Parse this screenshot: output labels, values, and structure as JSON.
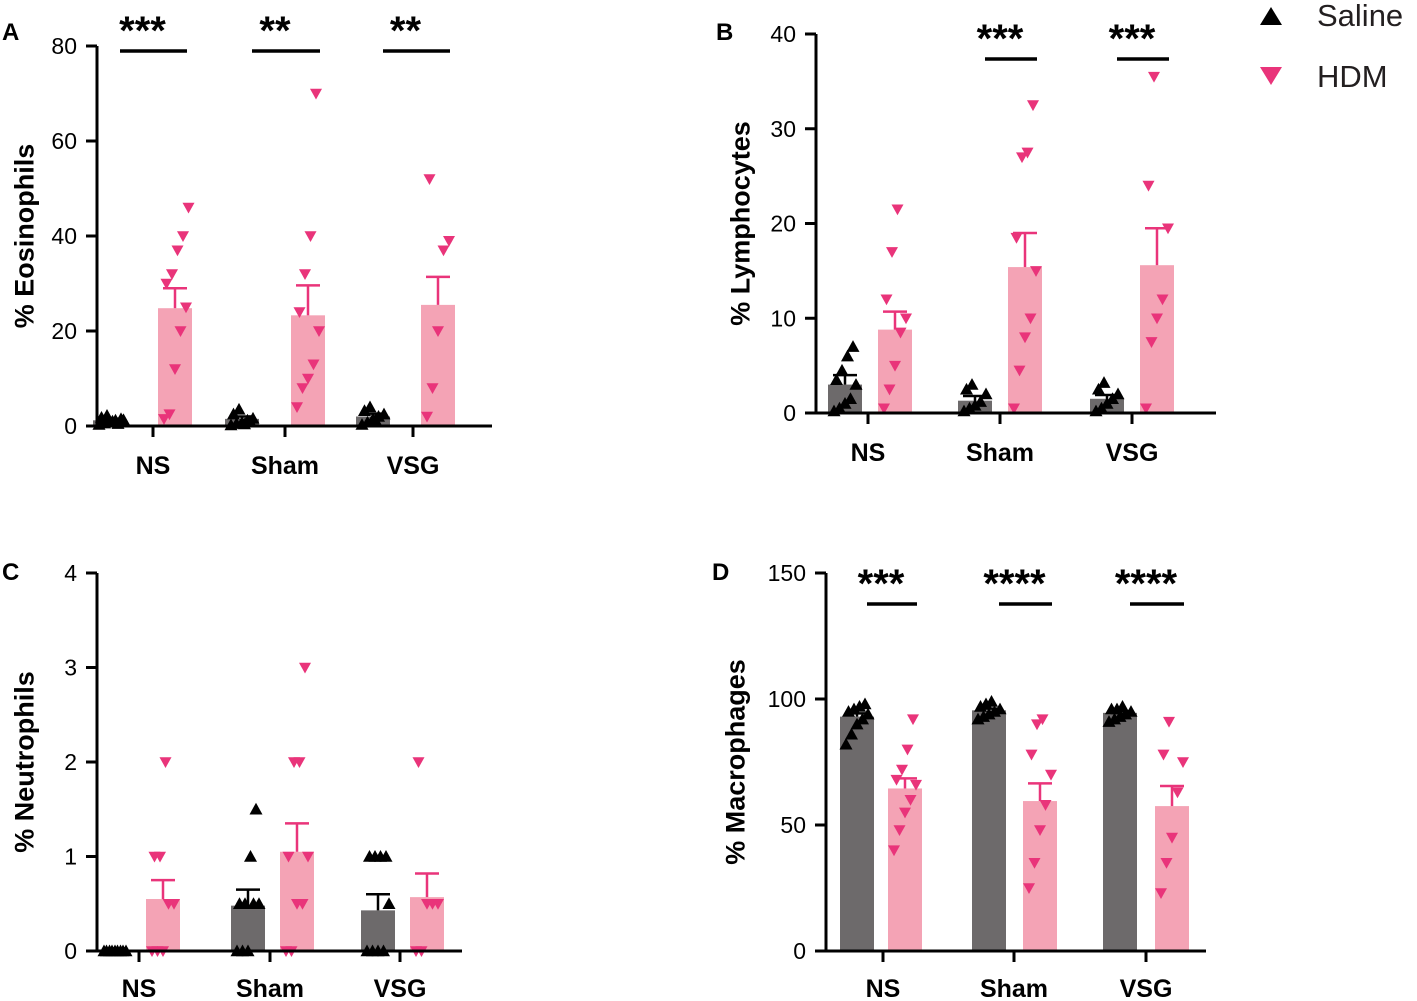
{
  "colors": {
    "saline_bar": "#6d6a6b",
    "saline_point": "#000000",
    "hdm_bar": "#f4a3b5",
    "hdm_point": "#e9347a",
    "axis": "#000000"
  },
  "legend": {
    "saline": {
      "label": "Saline",
      "icon": "triangle-up-icon"
    },
    "hdm": {
      "label": "HDM",
      "icon": "triangle-down-icon"
    }
  },
  "chart_data": [
    {
      "panel": "A",
      "type": "bar",
      "ylabel": "% Eosinophils",
      "ylim": [
        0,
        80
      ],
      "yticks": [
        0,
        20,
        40,
        60,
        80
      ],
      "categories": [
        "NS",
        "Sham",
        "VSG"
      ],
      "series": [
        {
          "name": "Saline",
          "values": [
            1.2,
            1.5,
            2.0
          ],
          "sem": [
            0.3,
            0.5,
            0.6
          ],
          "points": [
            [
              0.3,
              0.6,
              0.9,
              1.2,
              1.5,
              1.8,
              2.2,
              1.0,
              0.5,
              1.3
            ],
            [
              0.2,
              0.5,
              0.8,
              1.2,
              1.6,
              2.5,
              3.5,
              0.4,
              1.0
            ],
            [
              0.3,
              0.8,
              1.5,
              2.0,
              2.5,
              3.2,
              4.0,
              1.2
            ]
          ]
        },
        {
          "name": "HDM",
          "values": [
            24.8,
            23.3,
            25.5
          ],
          "sem": [
            4.2,
            6.3,
            5.9
          ],
          "points": [
            [
              1.5,
              2.5,
              12,
              20,
              25,
              30,
              32,
              37,
              40,
              46
            ],
            [
              4,
              8,
              10,
              13,
              20,
              24,
              32,
              40,
              70
            ],
            [
              2,
              8,
              20,
              37,
              39,
              52
            ]
          ]
        }
      ],
      "significance": [
        "***",
        "**",
        "**"
      ]
    },
    {
      "panel": "B",
      "type": "bar",
      "ylabel": "% Lymphocytes",
      "ylim": [
        0,
        40
      ],
      "yticks": [
        0,
        10,
        20,
        30,
        40
      ],
      "categories": [
        "NS",
        "Sham",
        "VSG"
      ],
      "series": [
        {
          "name": "Saline",
          "values": [
            3.0,
            1.3,
            1.5
          ],
          "sem": [
            1.0,
            0.5,
            0.4
          ],
          "points": [
            [
              0.2,
              0.5,
              1.0,
              1.5,
              3.0,
              3.5,
              4.5,
              6.0,
              7.0
            ],
            [
              0.2,
              0.5,
              0.8,
              1.2,
              2.0,
              2.5,
              3.0
            ],
            [
              0.2,
              0.5,
              1.0,
              1.5,
              2.0,
              2.5,
              3.2
            ]
          ]
        },
        {
          "name": "HDM",
          "values": [
            8.8,
            15.4,
            15.6
          ],
          "sem": [
            1.9,
            3.6,
            3.9
          ],
          "points": [
            [
              0.5,
              2.5,
              5.0,
              8.5,
              10.0,
              12.0,
              17.0,
              21.5
            ],
            [
              0.5,
              4.5,
              8.0,
              10.0,
              15.0,
              18.5,
              27.0,
              27.5,
              32.5
            ],
            [
              0.5,
              7.5,
              10.0,
              12.0,
              19.5,
              24.0,
              35.5
            ]
          ]
        }
      ],
      "significance": [
        "",
        "***",
        "***"
      ]
    },
    {
      "panel": "C",
      "type": "bar",
      "ylabel": "% Neutrophils",
      "ylim": [
        0,
        4
      ],
      "yticks": [
        0,
        1,
        2,
        3,
        4
      ],
      "categories": [
        "NS",
        "Sham",
        "VSG"
      ],
      "series": [
        {
          "name": "Saline",
          "values": [
            0.0,
            0.48,
            0.43
          ],
          "sem": [
            0.0,
            0.17,
            0.17
          ],
          "points": [
            [
              0,
              0,
              0,
              0,
              0,
              0,
              0,
              0,
              0
            ],
            [
              0,
              0,
              0,
              0.5,
              0.5,
              0.5,
              0.5,
              1.0,
              1.5
            ],
            [
              0,
              0,
              0,
              0,
              0.5,
              1.0,
              1.0,
              1.0,
              1.0
            ]
          ]
        },
        {
          "name": "HDM",
          "values": [
            0.55,
            1.05,
            0.57
          ],
          "sem": [
            0.2,
            0.3,
            0.25
          ],
          "points": [
            [
              0,
              0,
              0,
              0.5,
              0.5,
              1.0,
              1.0,
              2.0
            ],
            [
              0,
              0,
              0.5,
              0.5,
              1.0,
              1.0,
              2.0,
              2.0,
              3.0
            ],
            [
              0,
              0,
              0.5,
              0.5,
              0.5,
              2.0
            ]
          ]
        }
      ],
      "significance": [
        "",
        "",
        ""
      ]
    },
    {
      "panel": "D",
      "type": "bar",
      "ylabel": "% Macrophages",
      "ylim": [
        0,
        150
      ],
      "yticks": [
        0,
        50,
        100,
        150
      ],
      "categories": [
        "NS",
        "Sham",
        "VSG"
      ],
      "series": [
        {
          "name": "Saline",
          "values": [
            93.0,
            95.5,
            94.5
          ],
          "sem": [
            1.3,
            0.7,
            0.7
          ],
          "points": [
            [
              82,
              86,
              90,
              92,
              94,
              95,
              96,
              97,
              98
            ],
            [
              92,
              93,
              94,
              95,
              96,
              97,
              98,
              99
            ],
            [
              91,
              92,
              93,
              94,
              95,
              96,
              96,
              97
            ]
          ]
        },
        {
          "name": "HDM",
          "values": [
            64.5,
            59.5,
            57.5
          ],
          "sem": [
            4.0,
            7.0,
            8.0
          ],
          "points": [
            [
              40,
              48,
              55,
              60,
              66,
              68,
              72,
              80,
              92
            ],
            [
              25,
              35,
              48,
              58,
              70,
              78,
              90,
              92
            ],
            [
              23,
              35,
              45,
              63,
              75,
              78,
              91
            ]
          ]
        }
      ],
      "significance": [
        "***",
        "****",
        "****"
      ]
    }
  ]
}
